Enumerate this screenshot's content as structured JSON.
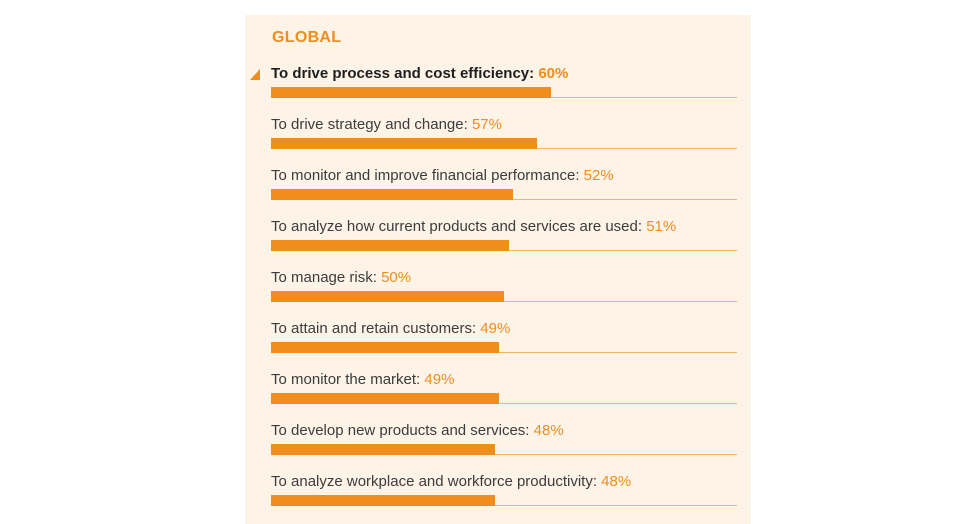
{
  "chart_data": {
    "type": "bar",
    "orientation": "horizontal",
    "title": "GLOBAL",
    "xlim": [
      0,
      100
    ],
    "unit": "%",
    "items": [
      {
        "label": "To drive process and cost efficiency:",
        "value": 60,
        "value_label": "60%"
      },
      {
        "label": "To drive strategy and change:",
        "value": 57,
        "value_label": "57%"
      },
      {
        "label": "To monitor and improve financial performance:",
        "value": 52,
        "value_label": "52%"
      },
      {
        "label": "To analyze how current products and services are used:",
        "value": 51,
        "value_label": "51%"
      },
      {
        "label": "To manage risk:",
        "value": 50,
        "value_label": "50%"
      },
      {
        "label": "To attain and retain customers:",
        "value": 49,
        "value_label": "49%"
      },
      {
        "label": "To monitor the market:",
        "value": 49,
        "value_label": "49%"
      },
      {
        "label": "To develop new products and services:",
        "value": 48,
        "value_label": "48%"
      },
      {
        "label": "To analyze workplace and workforce productivity:",
        "value": 48,
        "value_label": "48%"
      }
    ],
    "highlighted_index": 0
  },
  "colors": {
    "accent": "#ef8e1c",
    "panel_background": "#fdf3e7",
    "track": "#f1b567",
    "text": "#3c3c3c"
  },
  "icons": {
    "highlight_marker": "triangle-marker-icon"
  }
}
